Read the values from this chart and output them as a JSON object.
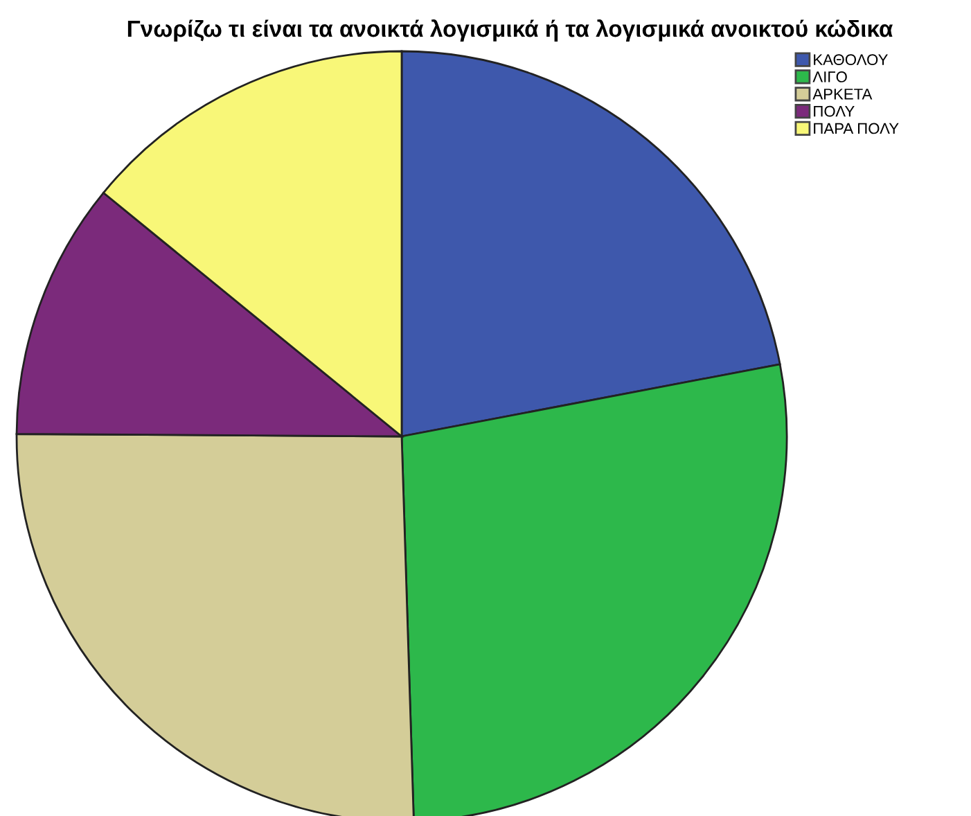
{
  "chart_data": {
    "type": "pie",
    "title": "Γνωρίζω τι είναι τα ανοικτά λογισμικά ή τα λογισμικά ανοικτού κώδικα",
    "categories": [
      "ΚΑΘΟΛΟΥ",
      "ΛΙΓΟ",
      "ΑΡΚΕΤΑ",
      "ΠΟΛΥ",
      "ΠΑΡΑ ΠΟΛΥ"
    ],
    "values": [
      22.0,
      27.5,
      25.6,
      10.8,
      14.1
    ],
    "colors": [
      "#3e58ac",
      "#2db84b",
      "#d4cd98",
      "#7b2a7b",
      "#f8f778"
    ],
    "legend": "top right"
  }
}
